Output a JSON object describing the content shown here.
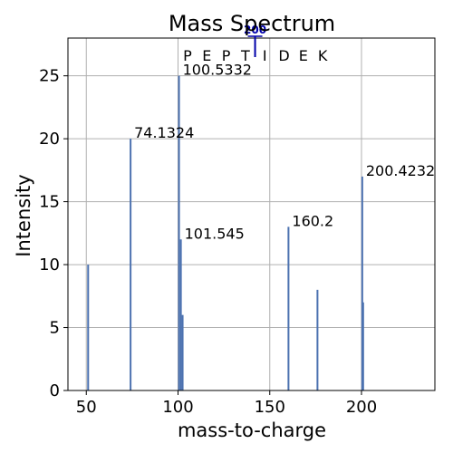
{
  "chart_data": {
    "type": "bar",
    "title": "Mass Spectrum",
    "xlabel": "mass-to-charge",
    "ylabel": "Intensity",
    "xlim": [
      40,
      240
    ],
    "ylim": [
      0,
      28
    ],
    "xticks": [
      50,
      100,
      150,
      200
    ],
    "yticks": [
      0,
      5,
      10,
      15,
      20,
      25
    ],
    "grid": true,
    "peak_color": "#4c72b0",
    "marker_color": "#0000aa",
    "peaks": [
      {
        "x": 51,
        "y": 10,
        "label": ""
      },
      {
        "x": 74.1324,
        "y": 20,
        "label": "74.1324"
      },
      {
        "x": 100.5332,
        "y": 25,
        "label": "100.5332"
      },
      {
        "x": 101.545,
        "y": 12,
        "label": "101.545"
      },
      {
        "x": 102.5,
        "y": 6,
        "label": ""
      },
      {
        "x": 160.2,
        "y": 13,
        "label": "160.2"
      },
      {
        "x": 176,
        "y": 8,
        "label": ""
      },
      {
        "x": 200.4232,
        "y": 17,
        "label": "200.4232"
      },
      {
        "x": 200.9,
        "y": 7,
        "label": ""
      }
    ],
    "sequence": [
      "P",
      "E",
      "P",
      "T",
      "I",
      "D",
      "E",
      "K"
    ],
    "sequence_marker": {
      "label": "200",
      "position": 4
    }
  }
}
